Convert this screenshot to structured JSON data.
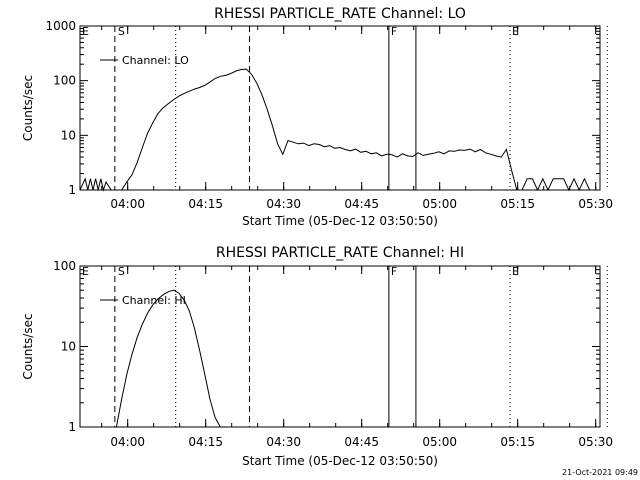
{
  "chart_data": [
    {
      "type": "line",
      "title": "RHESSI PARTICLE_RATE Channel: LO",
      "xlabel": "Start Time (05-Dec-12 03:50:50)",
      "ylabel": "Counts/sec",
      "x_unit": "minutes since 03:50:50",
      "xlim": [
        0,
        100
      ],
      "ylim": [
        1,
        1000
      ],
      "y_scale": "log",
      "x_tick_labels": [
        "04:00",
        "04:15",
        "04:30",
        "04:45",
        "05:00",
        "05:15",
        "05:30"
      ],
      "x_tick_values": [
        9.17,
        24.17,
        39.17,
        54.17,
        69.17,
        84.17,
        99.17
      ],
      "y_tick_labels": [
        "1",
        "10",
        "100",
        "1000"
      ],
      "y_tick_values": [
        1,
        10,
        100,
        1000
      ],
      "legend": "Channel: LO",
      "legend_placement": "top-left",
      "series": [
        {
          "name": "Channel: LO",
          "x": [
            0,
            1,
            1.5,
            2,
            2.5,
            3,
            3.5,
            4,
            4.5,
            5,
            6,
            6.5,
            7,
            8,
            9,
            10,
            11,
            12,
            13,
            14,
            15,
            16,
            17,
            18,
            19,
            20,
            21,
            22,
            23,
            24,
            25,
            26,
            27,
            28,
            29,
            30,
            31,
            32,
            33,
            34,
            35,
            36,
            37,
            38,
            39,
            40,
            41,
            42,
            43,
            44,
            45,
            46,
            47,
            48,
            49,
            50,
            51,
            52,
            53,
            54,
            55,
            56,
            57,
            58,
            59,
            60,
            61,
            62,
            63,
            64,
            65,
            66,
            67,
            68,
            69,
            70,
            71,
            72,
            73,
            74,
            75,
            76,
            77,
            78,
            79,
            80,
            81,
            82,
            83,
            84,
            85,
            86,
            87,
            88,
            89,
            90,
            91,
            92,
            93,
            94,
            95,
            96,
            97,
            98,
            99
          ],
          "y": [
            1,
            1.6,
            1,
            1.6,
            1,
            1.6,
            1,
            1.6,
            1,
            1.4,
            1,
            1,
            1,
            1,
            1.4,
            1.9,
            3.2,
            6,
            11,
            17,
            25,
            32,
            38,
            45,
            52,
            58,
            64,
            70,
            75,
            82,
            95,
            110,
            120,
            125,
            135,
            150,
            160,
            163,
            130,
            90,
            55,
            30,
            15,
            7,
            4.5,
            8,
            7.5,
            7,
            7.2,
            6.5,
            7,
            6.8,
            6.2,
            6.5,
            5.8,
            6,
            5.5,
            5.2,
            5.6,
            4.9,
            5.1,
            4.6,
            4.8,
            4.2,
            4.5,
            4.4,
            4,
            4.6,
            4.2,
            4.1,
            4.8,
            4.3,
            4.5,
            4.7,
            5,
            4.6,
            5.2,
            5.1,
            5.4,
            5.3,
            5.6,
            5,
            5.5,
            4.8,
            4.5,
            4.2,
            4,
            5.5,
            2.3,
            1,
            1,
            1.6,
            1.6,
            1,
            1.6,
            1,
            1.6,
            1.6,
            1.6,
            1,
            1.6,
            1,
            1.6,
            1,
            1
          ]
        }
      ],
      "vlines": [
        {
          "x": 6.7,
          "style": "dashed",
          "label": "S"
        },
        {
          "x": 18.4,
          "style": "dotted",
          "label": ""
        },
        {
          "x": 32.6,
          "style": "dashed",
          "label": ""
        },
        {
          "x": 59.4,
          "style": "solid",
          "label": "F"
        },
        {
          "x": 64.6,
          "style": "solid",
          "label": ""
        },
        {
          "x": 82.7,
          "style": "dotted",
          "label": "E"
        },
        {
          "x": 101.4,
          "style": "dotted",
          "label": ""
        }
      ],
      "top_markers": [
        "E",
        "S",
        "F",
        "E"
      ]
    },
    {
      "type": "line",
      "title": "RHESSI PARTICLE_RATE Channel: HI",
      "xlabel": "Start Time (05-Dec-12 03:50:50)",
      "ylabel": "Counts/sec",
      "x_unit": "minutes since 03:50:50",
      "xlim": [
        0,
        100
      ],
      "ylim": [
        1,
        100
      ],
      "y_scale": "log",
      "x_tick_labels": [
        "04:00",
        "04:15",
        "04:30",
        "04:45",
        "05:00",
        "05:15",
        "05:30"
      ],
      "x_tick_values": [
        9.17,
        24.17,
        39.17,
        54.17,
        69.17,
        84.17,
        99.17
      ],
      "y_tick_labels": [
        "1",
        "10",
        "100"
      ],
      "y_tick_values": [
        1,
        10,
        100
      ],
      "legend": "Channel: HI",
      "legend_placement": "top-left",
      "series": [
        {
          "name": "Channel: HI",
          "x": [
            7,
            8,
            9,
            10,
            11,
            12,
            13,
            14,
            15,
            16,
            17,
            18,
            19,
            20,
            21,
            22,
            23,
            24,
            25,
            26,
            27
          ],
          "y": [
            1,
            2.2,
            4.5,
            8,
            13,
            19,
            26,
            33,
            39,
            44,
            48,
            50,
            46,
            38,
            28,
            17,
            9,
            4.5,
            2.2,
            1.3,
            1
          ]
        }
      ],
      "vlines": [
        {
          "x": 6.7,
          "style": "dashed",
          "label": "S"
        },
        {
          "x": 18.4,
          "style": "dotted",
          "label": ""
        },
        {
          "x": 32.6,
          "style": "dashed",
          "label": ""
        },
        {
          "x": 59.4,
          "style": "solid",
          "label": "F"
        },
        {
          "x": 64.6,
          "style": "solid",
          "label": ""
        },
        {
          "x": 82.7,
          "style": "dotted",
          "label": "E"
        },
        {
          "x": 101.4,
          "style": "dotted",
          "label": ""
        }
      ],
      "top_markers": [
        "E",
        "S",
        "F",
        "E"
      ]
    }
  ],
  "footer": {
    "timestamp": "21-Oct-2021 09:49"
  }
}
